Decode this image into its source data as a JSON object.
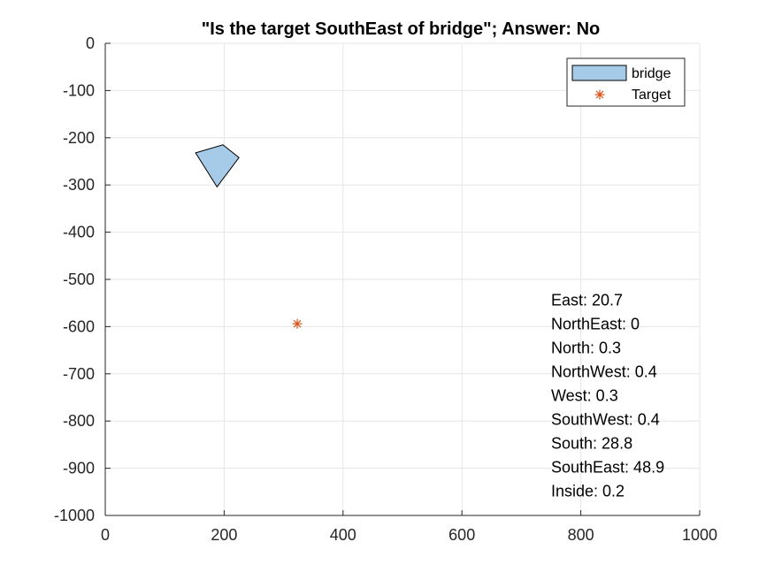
{
  "chart_data": {
    "type": "scatter",
    "title": "\"Is the target SouthEast of bridge\"; Answer: No",
    "xlabel": "",
    "ylabel": "",
    "xlim": [
      0,
      1000
    ],
    "ylim": [
      -1000,
      0
    ],
    "xticks": [
      0,
      200,
      400,
      600,
      800,
      1000
    ],
    "yticks": [
      0,
      -100,
      -200,
      -300,
      -400,
      -500,
      -600,
      -700,
      -800,
      -900,
      -1000
    ],
    "grid": true,
    "legend_position": "top-right",
    "series": [
      {
        "name": "bridge",
        "kind": "polygon",
        "color": "#a6cbe8",
        "edge_color": "#000000",
        "points": [
          [
            152,
            -232
          ],
          [
            198,
            -215
          ],
          [
            225,
            -242
          ],
          [
            188,
            -304
          ]
        ]
      },
      {
        "name": "Target",
        "kind": "marker",
        "marker": "asterisk",
        "color": "#d95319",
        "points": [
          [
            323,
            -594
          ]
        ]
      }
    ],
    "annotations": [
      "East: 20.7",
      "NorthEast: 0",
      "North: 0.3",
      "NorthWest: 0.4",
      "West: 0.3",
      "SouthWest: 0.4",
      "South: 28.8",
      "SouthEast: 48.9",
      "Inside: 0.2"
    ],
    "annotation_anchor": [
      750,
      -555
    ]
  }
}
